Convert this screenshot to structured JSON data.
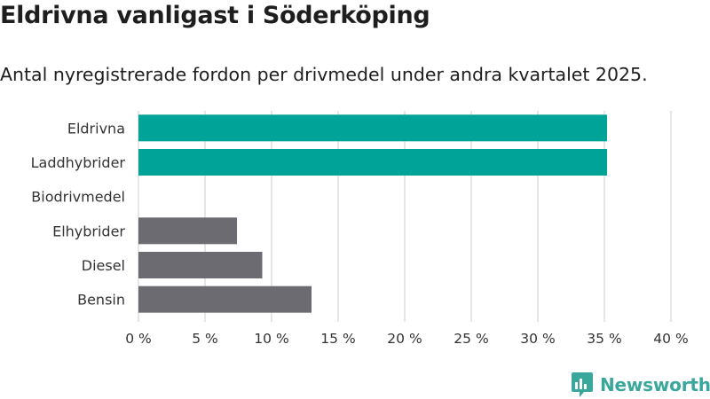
{
  "title": "Eldrivna vanligast i Söderköping",
  "subtitle": "Antal nyregistrerade fordon per drivmedel under andra kvartalet 2025.",
  "brand": {
    "name": "Newsworthy",
    "icon": "newsworthy-logo-icon",
    "color": "#3aa79d"
  },
  "colors": {
    "highlight": "#00a398",
    "default": "#6d6b72",
    "grid": "#dddddd"
  },
  "chart_data": {
    "type": "bar",
    "orientation": "horizontal",
    "categories": [
      "Eldrivna",
      "Laddhybrider",
      "Biodrivmedel",
      "Elhybrider",
      "Diesel",
      "Bensin"
    ],
    "values": [
      35.2,
      35.2,
      0,
      7.4,
      9.3,
      13.0
    ],
    "highlight": [
      true,
      true,
      false,
      false,
      false,
      false
    ],
    "xlim": [
      0,
      40
    ],
    "xticks": [
      0,
      5,
      10,
      15,
      20,
      25,
      30,
      35,
      40
    ],
    "xtick_labels": [
      "0 %",
      "5 %",
      "10 %",
      "15 %",
      "20 %",
      "25 %",
      "30 %",
      "35 %",
      "40 %"
    ],
    "grid": "vertical"
  }
}
